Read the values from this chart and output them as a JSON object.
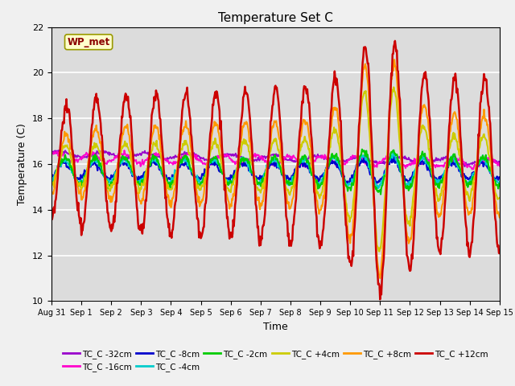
{
  "title": "Temperature Set C",
  "xlabel": "Time",
  "ylabel": "Temperature (C)",
  "ylim": [
    10,
    22
  ],
  "xlim": [
    0,
    15
  ],
  "yticks": [
    10,
    12,
    14,
    16,
    18,
    20,
    22
  ],
  "xtick_labels": [
    "Aug 31",
    "Sep 1",
    "Sep 2",
    "Sep 3",
    "Sep 4",
    "Sep 5",
    "Sep 6",
    "Sep 7",
    "Sep 8",
    "Sep 9",
    "Sep 10",
    "Sep 11",
    "Sep 12",
    "Sep 13",
    "Sep 14",
    "Sep 15"
  ],
  "background_color": "#dcdcdc",
  "figure_color": "#f0f0f0",
  "legend_box_color": "#ffffcc",
  "legend_box_edge": "#999900",
  "wp_met_label": "WP_met",
  "colors": {
    "TC_C -32cm": "#9900cc",
    "TC_C -16cm": "#ff00cc",
    "TC_C -8cm": "#0000cc",
    "TC_C -4cm": "#00cccc",
    "TC_C -2cm": "#00cc00",
    "TC_C +4cm": "#cccc00",
    "TC_C +8cm": "#ff9900",
    "TC_C +12cm": "#cc0000"
  },
  "grid_color": "#ffffff",
  "title_fontsize": 11,
  "axis_fontsize": 9,
  "tick_fontsize": 8
}
